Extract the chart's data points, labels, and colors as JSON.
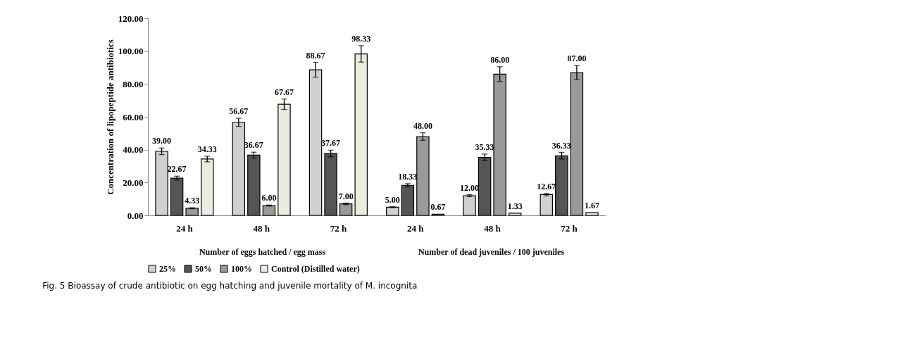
{
  "chart_data": {
    "type": "bar",
    "title": "Fig. 5 Bioassay of crude antibiotic on egg hatching and juvenile mortality of M. incognita",
    "ylabel": "Concentration of lipopeptide antibiotics",
    "categories": [
      "24 h",
      "48 h",
      "72 h",
      "24 h",
      "48 h",
      "72 h"
    ],
    "series": [
      {
        "name": "25%",
        "color": "#d0d0d0",
        "values": [
          39.0,
          56.67,
          88.67,
          5.0,
          12.0,
          12.67
        ],
        "value_labels": [
          "39.00",
          "56.67",
          "88.67",
          "5.00",
          "12.00",
          "12.67"
        ],
        "errors": [
          2,
          2.5,
          4.5,
          0.3,
          0.6,
          0.8
        ]
      },
      {
        "name": "50%",
        "color": "#555555",
        "values": [
          22.67,
          36.67,
          37.67,
          18.33,
          35.33,
          36.33
        ],
        "value_labels": [
          "22.67",
          "36.67",
          "37.67",
          "18.33",
          "35.33",
          "36.33"
        ],
        "errors": [
          1.2,
          1.8,
          2,
          1,
          2,
          2
        ]
      },
      {
        "name": "100%",
        "color": "#9a9a9a",
        "values": [
          4.33,
          6.0,
          7.0,
          48.0,
          86.0,
          87.0
        ],
        "value_labels": [
          "4.33",
          "6.00",
          "7.00",
          "48.00",
          "86.00",
          "87.00"
        ],
        "errors": [
          0.3,
          0.3,
          0.5,
          2.3,
          4.5,
          4.3
        ]
      },
      {
        "name": "Control  (Distilled water)",
        "color": "#ecebe0",
        "values": [
          34.33,
          67.67,
          98.33,
          0.67,
          1.33,
          1.67
        ],
        "value_labels": [
          "34.33",
          "67.67",
          "98.33",
          "0.67",
          "1.33",
          "1.67"
        ],
        "errors": [
          1.7,
          3.2,
          5,
          null,
          null,
          null
        ]
      }
    ],
    "ylim": [
      0,
      120
    ],
    "yticks": [
      {
        "value": 0,
        "label": "0.00"
      },
      {
        "value": 20,
        "label": "20.00"
      },
      {
        "value": 40,
        "label": "40.00"
      },
      {
        "value": 60,
        "label": "60.00"
      },
      {
        "value": 80,
        "label": "80.00"
      },
      {
        "value": 100,
        "label": "100.00"
      },
      {
        "value": 120,
        "label": "120.00"
      }
    ],
    "annotations": [
      "Number of eggs hatched / egg mass",
      "Number of dead juveniles / 100 juveniles"
    ],
    "legend": "bottom",
    "grid": false
  }
}
